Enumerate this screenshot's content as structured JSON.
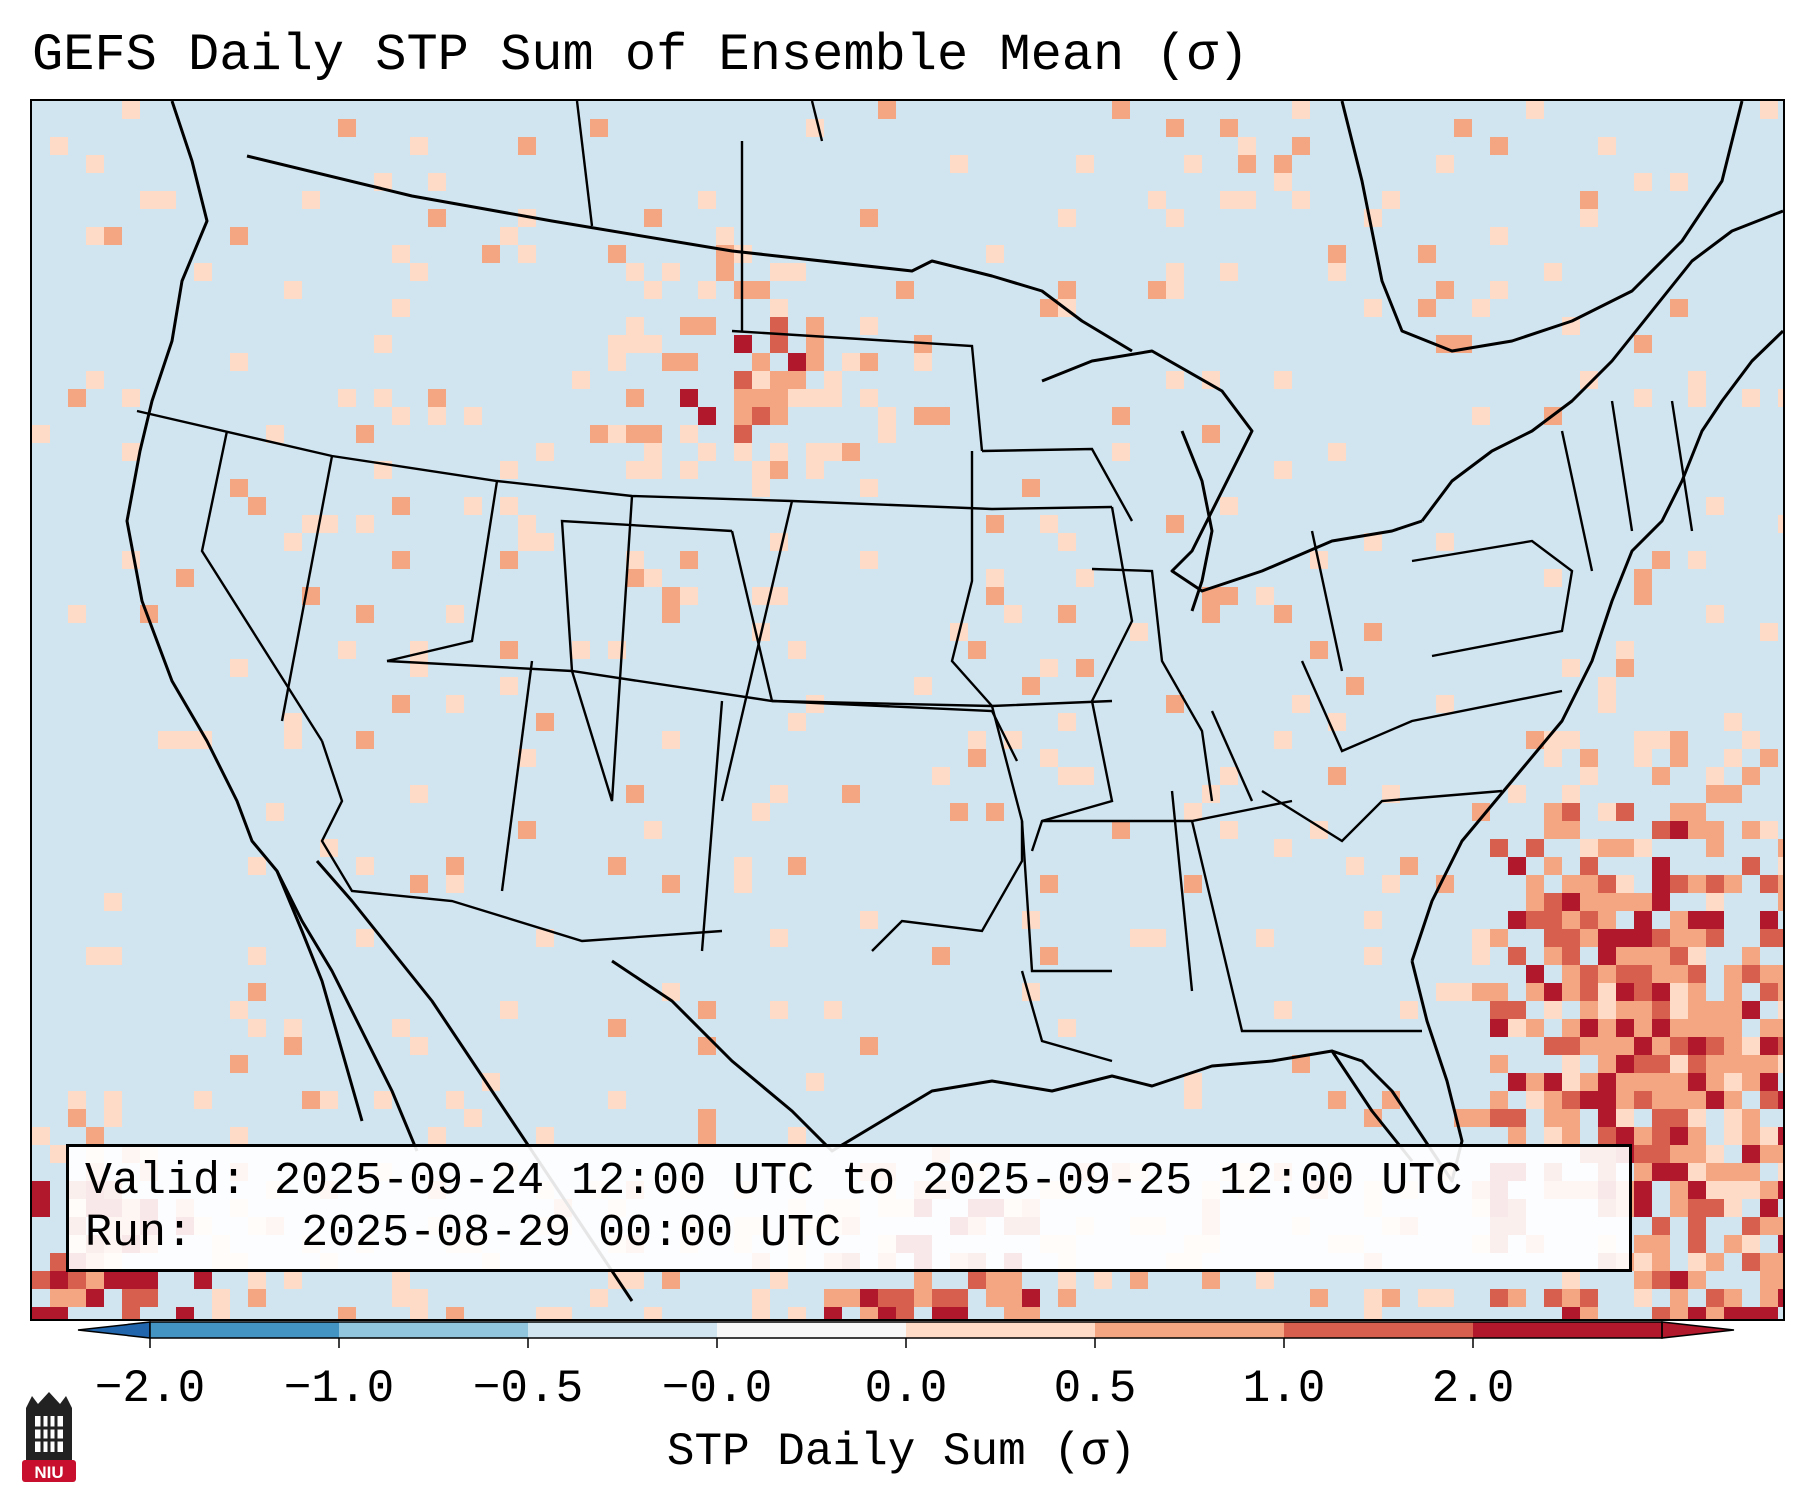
{
  "title": "GEFS Daily STP Sum of Ensemble Mean (σ)",
  "info": {
    "valid_label": "Valid:",
    "valid_value": "2025-09-24 12:00 UTC to 2025-09-25 12:00 UTC",
    "run_label": "Run:",
    "run_value": "2025-08-29 00:00 UTC"
  },
  "colorbar": {
    "label": "STP Daily Sum (σ)",
    "ticks": [
      "−2.0",
      "−1.0",
      "−0.5",
      "−0.0",
      "0.0",
      "0.5",
      "1.0",
      "2.0"
    ],
    "colors": [
      "#4393c3",
      "#92c5de",
      "#d1e5f0",
      "#f7f7f7",
      "#fddbc7",
      "#f4a582",
      "#d6604d",
      "#b2182b"
    ],
    "under_color": "#2166ac",
    "over_color": "#b2182b"
  },
  "map": {
    "background_color": "#d1e5f0",
    "border_color": "#000000"
  },
  "logo": {
    "text": "NIU",
    "color": "#c8102e"
  }
}
